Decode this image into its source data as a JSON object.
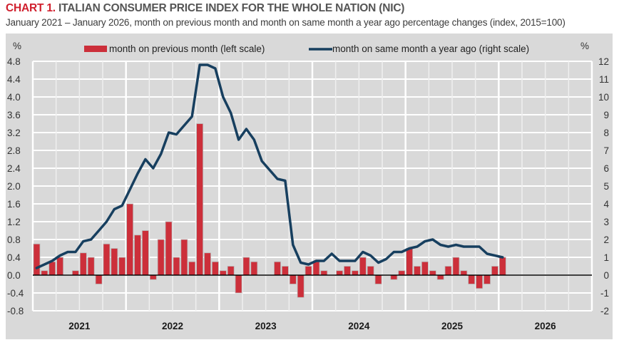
{
  "header": {
    "chart_number": "CHART 1.",
    "title": "ITALIAN CONSUMER PRICE INDEX FOR THE WHOLE NATION (NIC)",
    "subtitle": "January 2021 – January 2026, month on previous month and month on same month a year ago percentage changes (index, 2015=100)"
  },
  "colors": {
    "bar": "#cc2f3a",
    "line": "#173f5f",
    "background": "#d9d9d9",
    "grid": "#ffffff",
    "title_accent": "#d0202e"
  },
  "chart_data": {
    "type": "bar+line",
    "title": "ITALIAN CONSUMER PRICE INDEX FOR THE WHOLE NATION (NIC)",
    "x_categories": [
      "2021",
      "2022",
      "2023",
      "2024",
      "2025",
      "2026"
    ],
    "x_start": "January 2021",
    "x_end": "January 2026",
    "left_axis": {
      "unit": "%",
      "ylim": [
        -0.8,
        4.8
      ],
      "ticks": [
        "4.8",
        "4.4",
        "4.0",
        "3.6",
        "3.2",
        "2.8",
        "2.4",
        "2.0",
        "1.6",
        "1.2",
        "0.8",
        "0.4",
        "0.0",
        "-0.4",
        "-0.8"
      ]
    },
    "right_axis": {
      "unit": "%",
      "ylim": [
        -2,
        12
      ],
      "ticks": [
        "12",
        "11",
        "10",
        "9",
        "8",
        "7",
        "6",
        "5",
        "4",
        "3",
        "2",
        "1",
        "0",
        "-1",
        "-2"
      ]
    },
    "grid": true,
    "legend_position": "top",
    "series": [
      {
        "name": "month on previous month (left scale)",
        "type": "bar",
        "axis": "left",
        "values": [
          0.7,
          0.1,
          0.3,
          0.4,
          0.0,
          0.1,
          0.5,
          0.4,
          -0.2,
          0.7,
          0.6,
          0.4,
          1.6,
          0.9,
          1.0,
          -0.1,
          0.8,
          1.2,
          0.4,
          0.8,
          0.3,
          3.4,
          0.5,
          0.3,
          0.1,
          0.2,
          -0.4,
          0.4,
          0.3,
          0.0,
          0.0,
          0.3,
          0.2,
          -0.2,
          -0.5,
          0.2,
          0.3,
          0.1,
          0.0,
          0.1,
          0.2,
          0.1,
          0.4,
          0.2,
          -0.2,
          0.0,
          -0.1,
          0.1,
          0.6,
          0.2,
          0.3,
          0.1,
          -0.1,
          0.2,
          0.4,
          0.1,
          -0.2,
          -0.3,
          -0.2,
          0.2,
          0.4
        ]
      },
      {
        "name": "month on same month a year ago (right scale)",
        "type": "line",
        "axis": "right",
        "values": [
          0.4,
          0.6,
          0.8,
          1.1,
          1.3,
          1.3,
          1.9,
          2.0,
          2.5,
          3.0,
          3.7,
          3.9,
          4.8,
          5.7,
          6.5,
          6.0,
          6.8,
          8.0,
          7.9,
          8.4,
          8.9,
          11.8,
          11.8,
          11.6,
          10.0,
          9.1,
          7.6,
          8.2,
          7.6,
          6.4,
          5.9,
          5.4,
          5.3,
          1.7,
          0.7,
          0.6,
          0.8,
          0.8,
          1.2,
          0.8,
          0.8,
          0.8,
          1.3,
          1.1,
          0.7,
          0.9,
          1.3,
          1.3,
          1.5,
          1.6,
          1.9,
          2.0,
          1.7,
          1.6,
          1.7,
          1.6,
          1.6,
          1.6,
          1.2,
          1.1,
          1.0
        ]
      }
    ]
  }
}
